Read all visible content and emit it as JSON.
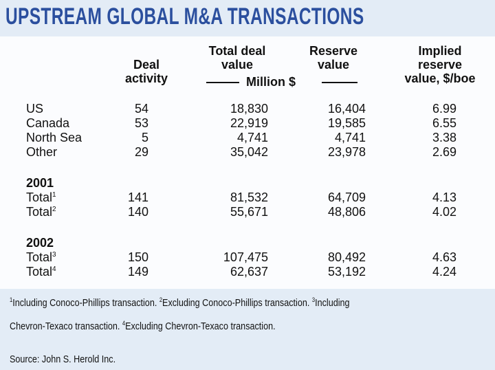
{
  "title": "Upstream global M&A transactions",
  "columns": {
    "deal_activity": [
      "Deal",
      "activity"
    ],
    "total_deal_value": [
      "Total deal",
      "value"
    ],
    "reserve_value": [
      "Reserve",
      "value"
    ],
    "implied": [
      "Implied",
      "reserve",
      "value, $/boe"
    ],
    "unit": "Million $"
  },
  "regions": [
    {
      "label": "US",
      "deal": "54",
      "total": "18,830",
      "reserve": "16,404",
      "implied": "6.99"
    },
    {
      "label": "Canada",
      "deal": "53",
      "total": "22,919",
      "reserve": "19,585",
      "implied": "6.55"
    },
    {
      "label": "North Sea",
      "deal": "5",
      "total": "4,741",
      "reserve": "4,741",
      "implied": "3.38"
    },
    {
      "label": "Other",
      "deal": "29",
      "total": "35,042",
      "reserve": "23,978",
      "implied": "2.69"
    }
  ],
  "years": [
    {
      "year": "2001",
      "rows": [
        {
          "label": "Total",
          "sup": "1",
          "deal": "141",
          "total": "81,532",
          "reserve": "64,709",
          "implied": "4.13"
        },
        {
          "label": "Total",
          "sup": "2",
          "deal": "140",
          "total": "55,671",
          "reserve": "48,806",
          "implied": "4.02"
        }
      ]
    },
    {
      "year": "2002",
      "rows": [
        {
          "label": "Total",
          "sup": "3",
          "deal": "150",
          "total": "107,475",
          "reserve": "80,492",
          "implied": "4.63"
        },
        {
          "label": "Total",
          "sup": "4",
          "deal": "149",
          "total": "62,637",
          "reserve": "53,192",
          "implied": "4.24"
        }
      ]
    }
  ],
  "footnotes": {
    "n1": "1",
    "t1": "Including Conoco-Phillips transaction. ",
    "n2": "2",
    "t2": "Excluding Conoco-Phillips transaction. ",
    "n3": "3",
    "t3": "Including",
    "t3b": "Chevron-Texaco transaction. ",
    "n4": "4",
    "t4": "Excluding Chevron-Texaco transaction."
  },
  "source": "Source: John S. Herold Inc.",
  "colors": {
    "title": "#2b4f9e",
    "panel": "#fbfcfe",
    "background": "#e3ecf6"
  }
}
